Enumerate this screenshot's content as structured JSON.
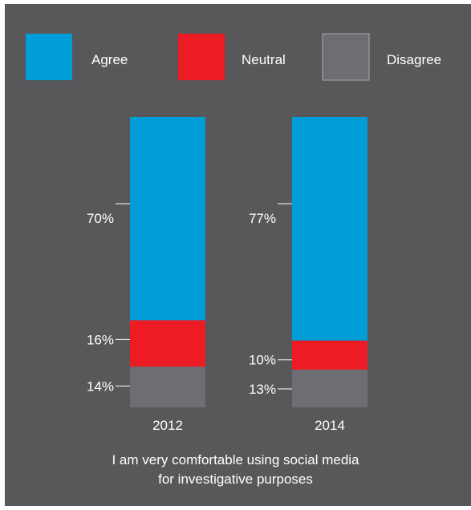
{
  "colors": {
    "background": "#58585a",
    "agree": "#009dd9",
    "neutral": "#ed1c24",
    "disagree": "#6d6e71",
    "tick": "#ffffff"
  },
  "legend": [
    {
      "label": "Agree",
      "color": "#009dd9"
    },
    {
      "label": "Neutral",
      "color": "#ed1c24"
    },
    {
      "label": "Disagree",
      "color": "#6d6e71"
    }
  ],
  "caption": {
    "line1": "I am very comfortable using social media",
    "line2": "for investigative purposes"
  },
  "chart_data": {
    "type": "bar",
    "stacked": true,
    "categories": [
      "2012",
      "2014"
    ],
    "series": [
      {
        "name": "Agree",
        "values": [
          70,
          77
        ],
        "labels": [
          "70%",
          "77%"
        ]
      },
      {
        "name": "Neutral",
        "values": [
          16,
          10
        ],
        "labels": [
          "16%",
          "10%"
        ]
      },
      {
        "name": "Disagree",
        "values": [
          14,
          13
        ],
        "labels": [
          "14%",
          "13%"
        ]
      }
    ],
    "ylim": [
      0,
      100
    ],
    "legend_position": "top",
    "grid": false,
    "xlabel": "",
    "ylabel": ""
  }
}
